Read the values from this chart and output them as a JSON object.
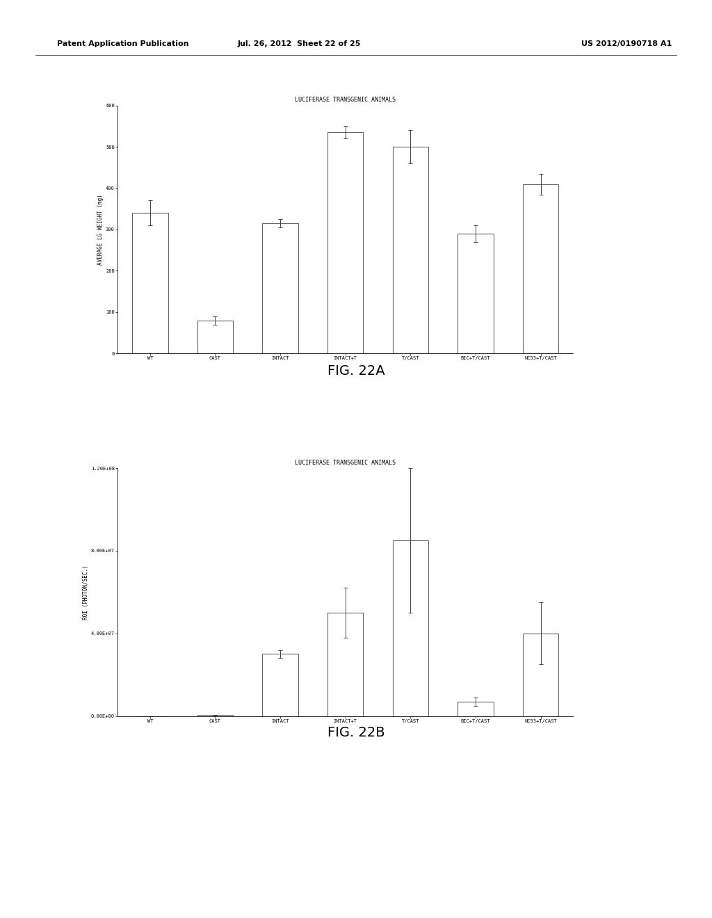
{
  "fig22a": {
    "title": "LUCIFERASE TRANSGENIC ANIMALS",
    "categories": [
      "WT",
      "CAST",
      "INTACT",
      "INTACT+T",
      "T/CAST",
      "BIC+T/CAST",
      "NC53+T/CAST"
    ],
    "values": [
      340,
      80,
      315,
      535,
      500,
      290,
      410
    ],
    "errors": [
      30,
      10,
      10,
      15,
      40,
      20,
      25
    ],
    "ylabel": "AVERAGE LG WEIGHT (mg)",
    "ylim": [
      0,
      600
    ],
    "yticks": [
      0,
      100,
      200,
      300,
      400,
      500,
      600
    ]
  },
  "fig22b": {
    "title": "LUCIFERASE TRANSGENIC ANIMALS",
    "categories": [
      "WT",
      "CAST",
      "INTACT",
      "INTACT+T",
      "T/CAST",
      "BIC+T/CAST",
      "NC53+T/CAST"
    ],
    "values": [
      0,
      500000.0,
      30000000.0,
      50000000.0,
      85000000.0,
      7000000.0,
      40000000.0
    ],
    "errors": [
      0,
      200000.0,
      2000000.0,
      12000000.0,
      35000000.0,
      2000000.0,
      15000000.0
    ],
    "ylabel": "ROI (PHOTON/SEC.)",
    "ylim": [
      0,
      120000000.0
    ],
    "yticks": [
      0,
      40000000.0,
      80000000.0,
      120000000.0
    ],
    "ytick_labels": [
      "0.00E+00",
      "4.00E+07",
      "8.00E+07",
      "1.20E+08"
    ]
  },
  "header_left": "Patent Application Publication",
  "header_mid": "Jul. 26, 2012  Sheet 22 of 25",
  "header_right": "US 2012/0190718 A1",
  "fig_label_a": "FIG. 22A",
  "fig_label_b": "FIG. 22B",
  "bar_color": "#ffffff",
  "bar_edgecolor": "#666666",
  "bar_linewidth": 0.8,
  "background_color": "#ffffff",
  "text_color": "#000000",
  "bar_width": 0.55,
  "title_fontsize": 6,
  "axis_label_fontsize": 5.5,
  "tick_fontsize": 5,
  "fig_label_fontsize": 14,
  "header_fontsize": 8
}
